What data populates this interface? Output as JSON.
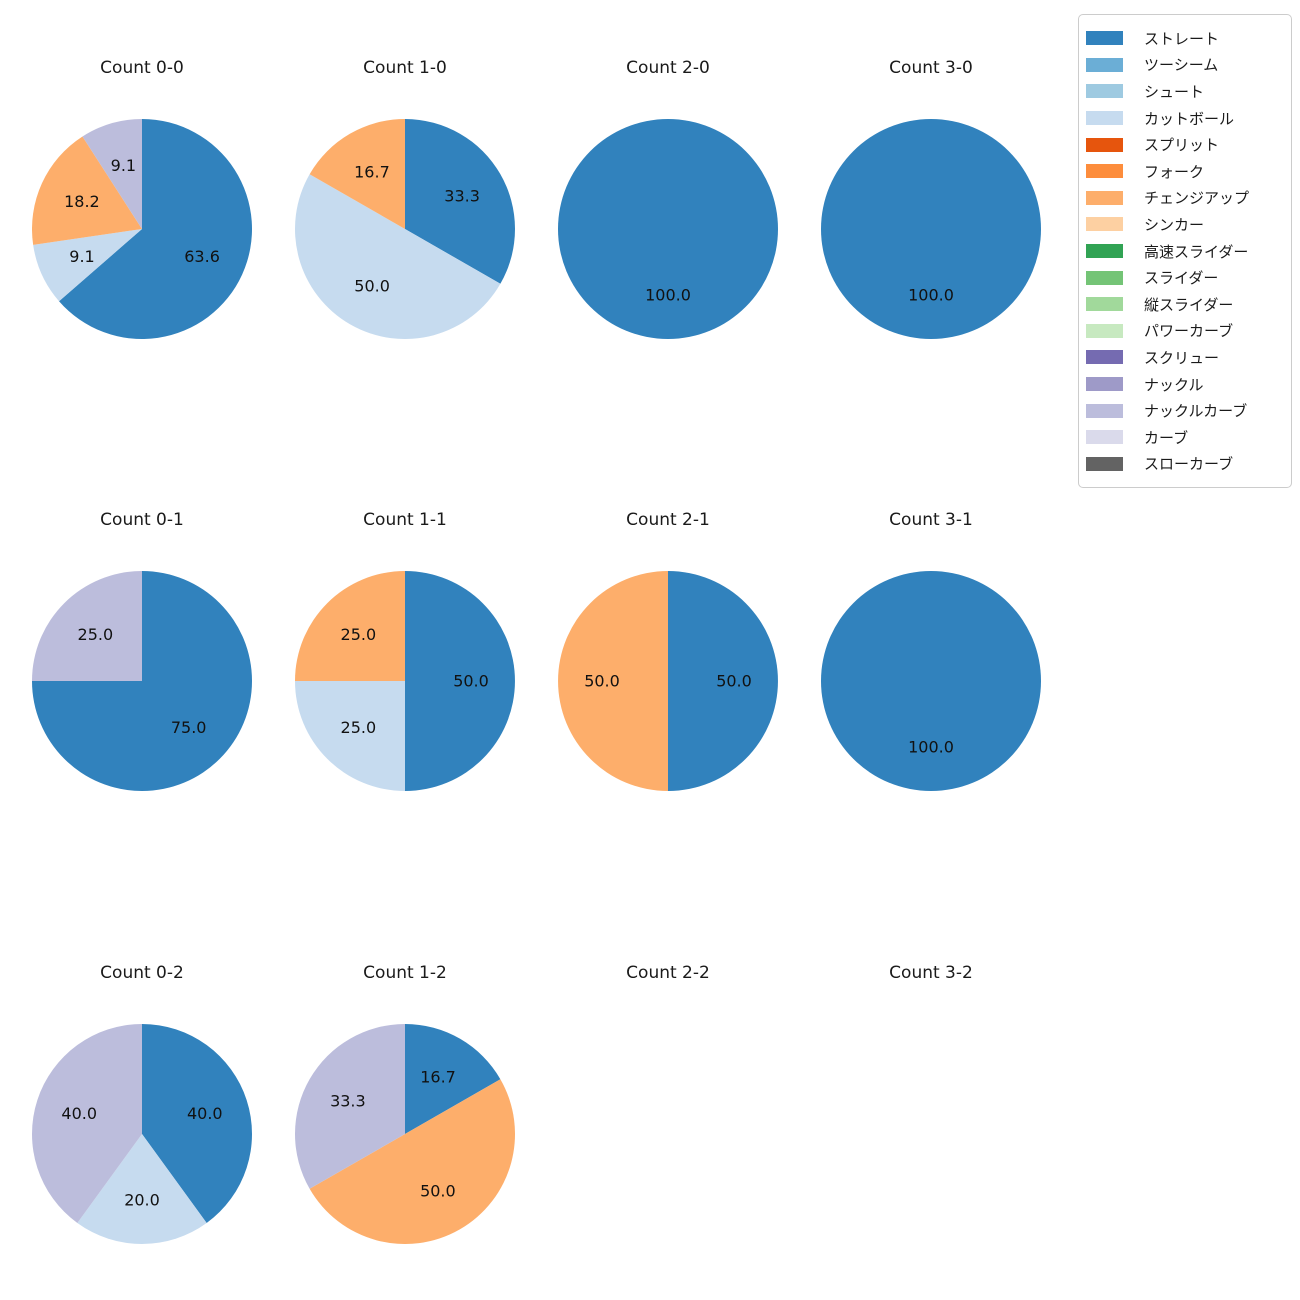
{
  "figure": {
    "background": "#ffffff",
    "grid": {
      "rows": 3,
      "cols": 4
    }
  },
  "legend": {
    "position": "upper right",
    "border_color": "#cccccc",
    "background": "#ffffff",
    "items": [
      {
        "label": "ストレート",
        "color": "#3182bd"
      },
      {
        "label": "ツーシーム",
        "color": "#6baed6"
      },
      {
        "label": "シュート",
        "color": "#9ecae1"
      },
      {
        "label": "カットボール",
        "color": "#c6dbef"
      },
      {
        "label": "スプリット",
        "color": "#e6550d"
      },
      {
        "label": "フォーク",
        "color": "#fd8d3c"
      },
      {
        "label": "チェンジアップ",
        "color": "#fdae6b"
      },
      {
        "label": "シンカー",
        "color": "#fdd0a2"
      },
      {
        "label": "高速スライダー",
        "color": "#31a354"
      },
      {
        "label": "スライダー",
        "color": "#74c476"
      },
      {
        "label": "縦スライダー",
        "color": "#a1d99b"
      },
      {
        "label": "パワーカーブ",
        "color": "#c7e9c0"
      },
      {
        "label": "スクリュー",
        "color": "#756bb1"
      },
      {
        "label": "ナックル",
        "color": "#9e9ac8"
      },
      {
        "label": "ナックルカーブ",
        "color": "#bcbddc"
      },
      {
        "label": "カーブ",
        "color": "#dadaeb"
      },
      {
        "label": "スローカーブ",
        "color": "#636363"
      }
    ]
  },
  "chart_data": [
    {
      "type": "pie",
      "title": "Count 0-0",
      "start_angle_deg": 90,
      "clockwise": true,
      "pctdistance": 0.6,
      "slices": [
        {
          "label": "ストレート",
          "value": 63.6,
          "pct": "63.6",
          "color": "#3182bd"
        },
        {
          "label": "カットボール",
          "value": 9.1,
          "pct": "9.1",
          "color": "#c6dbef"
        },
        {
          "label": "チェンジアップ",
          "value": 18.2,
          "pct": "18.2",
          "color": "#fdae6b"
        },
        {
          "label": "ナックルカーブ",
          "value": 9.1,
          "pct": "9.1",
          "color": "#bcbddc"
        }
      ]
    },
    {
      "type": "pie",
      "title": "Count 1-0",
      "start_angle_deg": 90,
      "clockwise": true,
      "pctdistance": 0.6,
      "slices": [
        {
          "label": "ストレート",
          "value": 33.3,
          "pct": "33.3",
          "color": "#3182bd"
        },
        {
          "label": "カットボール",
          "value": 50.0,
          "pct": "50.0",
          "color": "#c6dbef"
        },
        {
          "label": "チェンジアップ",
          "value": 16.7,
          "pct": "16.7",
          "color": "#fdae6b"
        }
      ]
    },
    {
      "type": "pie",
      "title": "Count 2-0",
      "start_angle_deg": 90,
      "clockwise": true,
      "pctdistance": 0.6,
      "slices": [
        {
          "label": "ストレート",
          "value": 100.0,
          "pct": "100.0",
          "color": "#3182bd"
        }
      ]
    },
    {
      "type": "pie",
      "title": "Count 3-0",
      "start_angle_deg": 90,
      "clockwise": true,
      "pctdistance": 0.6,
      "slices": [
        {
          "label": "ストレート",
          "value": 100.0,
          "pct": "100.0",
          "color": "#3182bd"
        }
      ]
    },
    {
      "type": "pie",
      "title": "Count 0-1",
      "start_angle_deg": 90,
      "clockwise": true,
      "pctdistance": 0.6,
      "slices": [
        {
          "label": "ストレート",
          "value": 75.0,
          "pct": "75.0",
          "color": "#3182bd"
        },
        {
          "label": "ナックルカーブ",
          "value": 25.0,
          "pct": "25.0",
          "color": "#bcbddc"
        }
      ]
    },
    {
      "type": "pie",
      "title": "Count 1-1",
      "start_angle_deg": 90,
      "clockwise": true,
      "pctdistance": 0.6,
      "slices": [
        {
          "label": "ストレート",
          "value": 50.0,
          "pct": "50.0",
          "color": "#3182bd"
        },
        {
          "label": "カットボール",
          "value": 25.0,
          "pct": "25.0",
          "color": "#c6dbef"
        },
        {
          "label": "チェンジアップ",
          "value": 25.0,
          "pct": "25.0",
          "color": "#fdae6b"
        }
      ]
    },
    {
      "type": "pie",
      "title": "Count 2-1",
      "start_angle_deg": 90,
      "clockwise": true,
      "pctdistance": 0.6,
      "slices": [
        {
          "label": "ストレート",
          "value": 50.0,
          "pct": "50.0",
          "color": "#3182bd"
        },
        {
          "label": "チェンジアップ",
          "value": 50.0,
          "pct": "50.0",
          "color": "#fdae6b"
        }
      ]
    },
    {
      "type": "pie",
      "title": "Count 3-1",
      "start_angle_deg": 90,
      "clockwise": true,
      "pctdistance": 0.6,
      "slices": [
        {
          "label": "ストレート",
          "value": 100.0,
          "pct": "100.0",
          "color": "#3182bd"
        }
      ]
    },
    {
      "type": "pie",
      "title": "Count 0-2",
      "start_angle_deg": 90,
      "clockwise": true,
      "pctdistance": 0.6,
      "slices": [
        {
          "label": "ストレート",
          "value": 40.0,
          "pct": "40.0",
          "color": "#3182bd"
        },
        {
          "label": "カットボール",
          "value": 20.0,
          "pct": "20.0",
          "color": "#c6dbef"
        },
        {
          "label": "ナックルカーブ",
          "value": 40.0,
          "pct": "40.0",
          "color": "#bcbddc"
        }
      ]
    },
    {
      "type": "pie",
      "title": "Count 1-2",
      "start_angle_deg": 90,
      "clockwise": true,
      "pctdistance": 0.6,
      "slices": [
        {
          "label": "ストレート",
          "value": 16.7,
          "pct": "16.7",
          "color": "#3182bd"
        },
        {
          "label": "チェンジアップ",
          "value": 50.0,
          "pct": "50.0",
          "color": "#fdae6b"
        },
        {
          "label": "ナックルカーブ",
          "value": 33.3,
          "pct": "33.3",
          "color": "#bcbddc"
        }
      ]
    },
    {
      "type": "pie",
      "title": "Count 2-2",
      "start_angle_deg": 90,
      "clockwise": true,
      "pctdistance": 0.6,
      "slices": []
    },
    {
      "type": "pie",
      "title": "Count 3-2",
      "start_angle_deg": 90,
      "clockwise": true,
      "pctdistance": 0.6,
      "slices": []
    }
  ]
}
